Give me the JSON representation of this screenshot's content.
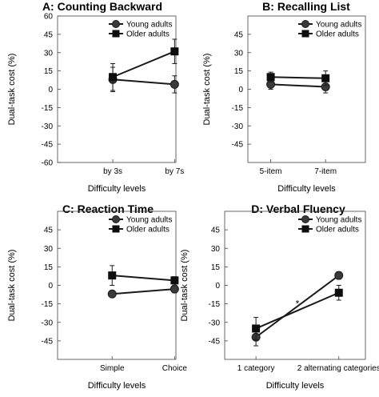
{
  "chart_data": [
    {
      "type": "line",
      "title": "A: Counting Backward",
      "xlabel": "Difficulty levels",
      "ylabel": "Dual-task cost (%)",
      "categories": [
        "by 3s",
        "by 7s"
      ],
      "ylim": [
        -60,
        60
      ],
      "yticks": [
        -60,
        -45,
        -30,
        -15,
        0,
        15,
        30,
        45,
        60
      ],
      "legend_position": "top-right",
      "annotations": [],
      "series": [
        {
          "name": "Young adults",
          "marker": "circle",
          "values": [
            8,
            4
          ],
          "error": [
            10,
            7
          ]
        },
        {
          "name": "Older adults",
          "marker": "square",
          "values": [
            10,
            31
          ],
          "error": [
            11,
            10
          ]
        }
      ]
    },
    {
      "type": "line",
      "title": "B: Recalling List",
      "xlabel": "Difficulty levels",
      "ylabel": "Dual-task cost (%)",
      "categories": [
        "5-item",
        "7-item"
      ],
      "ylim": [
        -60,
        60
      ],
      "yticks": [
        -45,
        -30,
        -15,
        0,
        15,
        30,
        45
      ],
      "legend_position": "top-right",
      "annotations": [],
      "series": [
        {
          "name": "Young adults",
          "marker": "circle",
          "values": [
            4,
            2
          ],
          "error": [
            4,
            5
          ]
        },
        {
          "name": "Older adults",
          "marker": "square",
          "values": [
            10,
            9
          ],
          "error": [
            4,
            6
          ]
        }
      ]
    },
    {
      "type": "line",
      "title": "C: Reaction Time",
      "xlabel": "Difficulty levels",
      "ylabel": "Dual-task cost (%)",
      "categories": [
        "Simple",
        "Choice"
      ],
      "ylim": [
        -60,
        60
      ],
      "yticks": [
        -45,
        -30,
        -15,
        0,
        15,
        30,
        45
      ],
      "legend_position": "top-right",
      "annotations": [],
      "series": [
        {
          "name": "Young adults",
          "marker": "circle",
          "values": [
            -7,
            -3
          ],
          "error": [
            2,
            3
          ]
        },
        {
          "name": "Older adults",
          "marker": "square",
          "values": [
            8,
            4
          ],
          "error": [
            8,
            3
          ]
        }
      ]
    },
    {
      "type": "line",
      "title": "D: Verbal Fluency",
      "xlabel": "Difficulty levels",
      "ylabel": "Dual-task cost (%)",
      "categories": [
        "1 category",
        "2 alternating categories"
      ],
      "ylim": [
        -60,
        60
      ],
      "yticks": [
        -45,
        -30,
        -15,
        0,
        15,
        30,
        45
      ],
      "legend_position": "top-right",
      "annotations": [
        {
          "text": "*",
          "x": 1.5,
          "y": -15
        }
      ],
      "series": [
        {
          "name": "Young adults",
          "marker": "circle",
          "values": [
            -42,
            8
          ],
          "error": [
            7,
            3
          ]
        },
        {
          "name": "Older adults",
          "marker": "square",
          "values": [
            -35,
            -6
          ],
          "error": [
            9,
            6
          ]
        }
      ]
    }
  ]
}
